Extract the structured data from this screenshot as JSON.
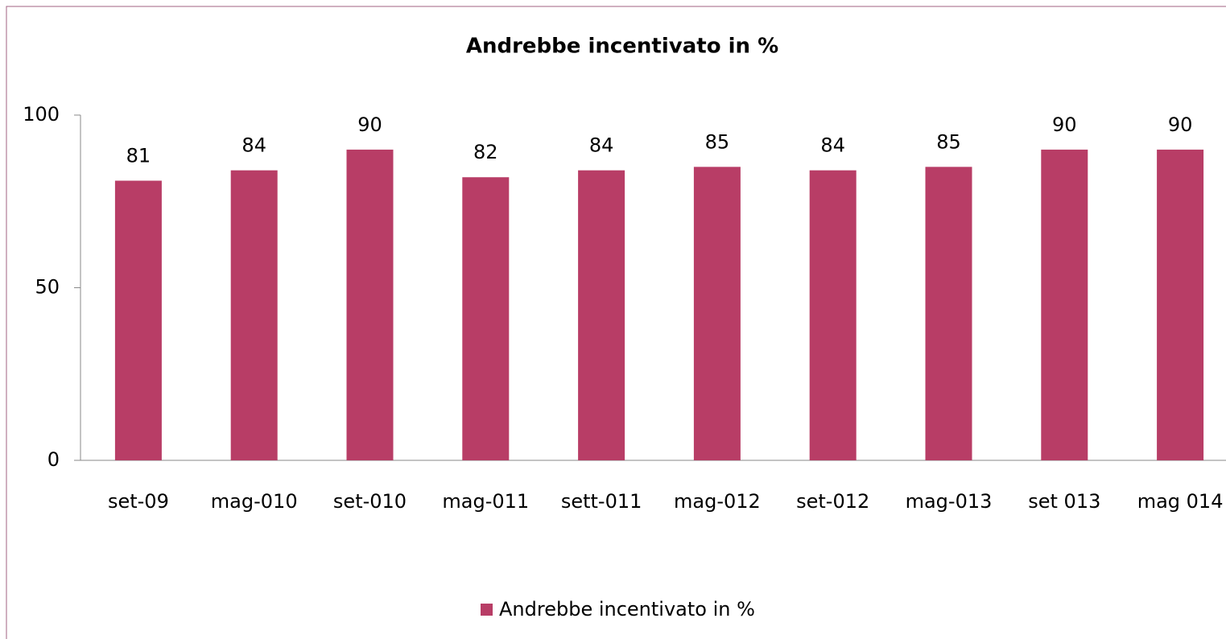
{
  "chart_data": {
    "type": "bar",
    "title": "Andrebbe incentivato in %",
    "categories": [
      "set-09",
      "mag-010",
      "set-010",
      "mag-011",
      "sett-011",
      "mag-012",
      "set-012",
      "mag-013",
      "set 013",
      "mag 014"
    ],
    "series": [
      {
        "name": "Andrebbe incentivato in %",
        "color": "#b83d66",
        "values": [
          81,
          84,
          90,
          82,
          84,
          85,
          84,
          85,
          90,
          90
        ]
      }
    ],
    "ylim": [
      0,
      100
    ],
    "yticks": [
      0,
      50,
      100
    ],
    "grid": false,
    "legend": "bottom"
  }
}
